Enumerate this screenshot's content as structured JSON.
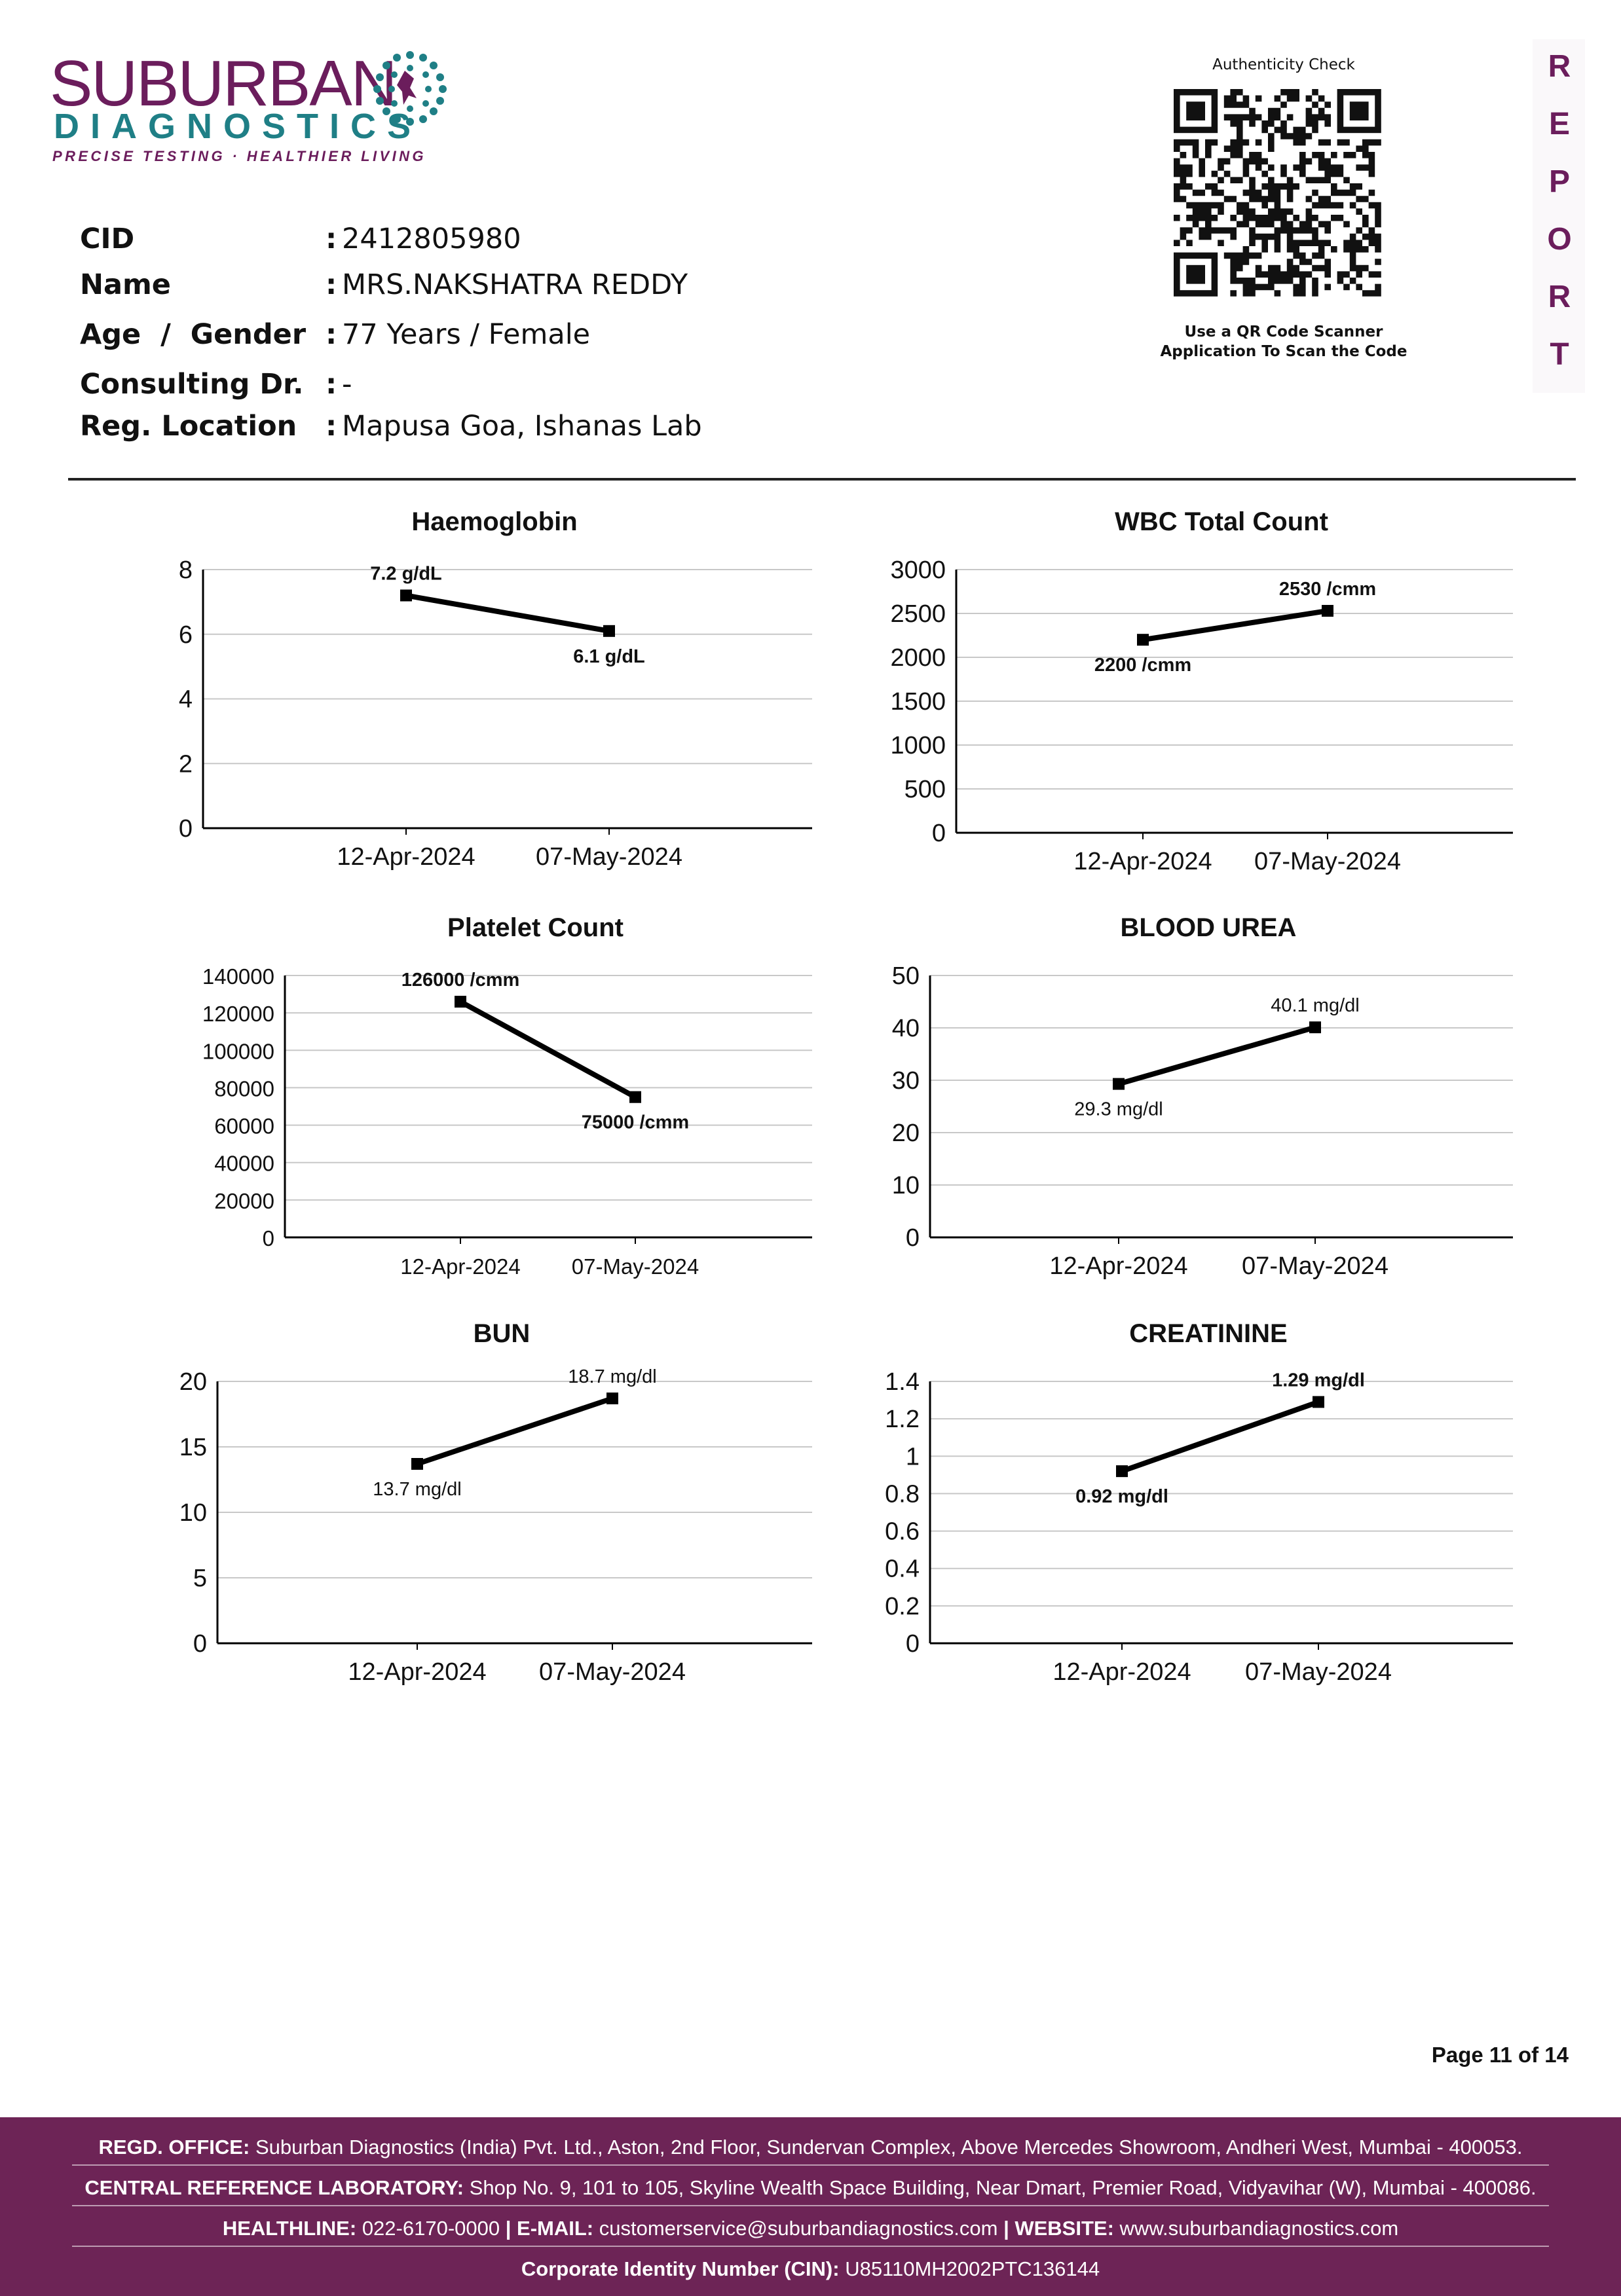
{
  "logo": {
    "brand": "SUBURBAN",
    "sub": "DIAGNOSTICS",
    "tagline": "PRECISE TESTING · HEALTHIER LIVING"
  },
  "patient": [
    {
      "label": "CID",
      "value": "2412805980"
    },
    {
      "label": "Name",
      "value": "MRS.NAKSHATRA REDDY"
    },
    {
      "label": "Age  /  Gender",
      "value": "77 Years / Female"
    },
    {
      "label": "Consulting Dr.",
      "value": "-"
    },
    {
      "label": "Reg. Location",
      "value": "Mapusa Goa, Ishanas Lab"
    }
  ],
  "qr": {
    "title": "Authenticity Check",
    "caption_line1": "Use a QR Code Scanner",
    "caption_line2": "Application To Scan the Code"
  },
  "side_label": [
    "R",
    "E",
    "P",
    "O",
    "R",
    "T"
  ],
  "page_number": "Page 11 of 14",
  "colors": {
    "brand_purple": "#6b1d5c",
    "brand_teal": "#1f7f86",
    "footer_bg": "#6d2456"
  },
  "chart_data": [
    {
      "type": "line",
      "title": "Haemoglobin",
      "categories": [
        "12-Apr-2024",
        "07-May-2024"
      ],
      "values": [
        7.2,
        6.1
      ],
      "data_labels": [
        "7.2 g/dL",
        "6.1 g/dL"
      ],
      "unit": "g/dL",
      "ylim": [
        0,
        8
      ],
      "yticks": [
        "8",
        "6",
        "4",
        "2",
        "0"
      ],
      "grid": true
    },
    {
      "type": "line",
      "title": "WBC Total Count",
      "categories": [
        "12-Apr-2024",
        "07-May-2024"
      ],
      "values": [
        2200,
        2530
      ],
      "data_labels": [
        "2200 /cmm",
        "2530 /cmm"
      ],
      "unit": "/cmm",
      "ylim": [
        0,
        3000
      ],
      "yticks": [
        "3000",
        "2500",
        "2000",
        "1500",
        "1000",
        "500",
        "0"
      ],
      "grid": true
    },
    {
      "type": "line",
      "title": "Platelet Count",
      "categories": [
        "12-Apr-2024",
        "07-May-2024"
      ],
      "values": [
        126000,
        75000
      ],
      "data_labels": [
        "126000 /cmm",
        "75000 /cmm"
      ],
      "unit": "/cmm",
      "ylim": [
        0,
        140000
      ],
      "yticks": [
        "140000",
        "120000",
        "100000",
        "80000",
        "60000",
        "40000",
        "20000",
        "0"
      ],
      "grid": true
    },
    {
      "type": "line",
      "title": "BLOOD UREA",
      "categories": [
        "12-Apr-2024",
        "07-May-2024"
      ],
      "values": [
        29.3,
        40.1
      ],
      "data_labels": [
        "29.3 mg/dl",
        "40.1 mg/dl"
      ],
      "unit": "mg/dl",
      "ylim": [
        0,
        50
      ],
      "yticks": [
        "50",
        "40",
        "30",
        "20",
        "10",
        "0"
      ],
      "grid": true
    },
    {
      "type": "line",
      "title": "BUN",
      "categories": [
        "12-Apr-2024",
        "07-May-2024"
      ],
      "values": [
        13.7,
        18.7
      ],
      "data_labels": [
        "13.7 mg/dl",
        "18.7 mg/dl"
      ],
      "unit": "mg/dl",
      "ylim": [
        0,
        20
      ],
      "yticks": [
        "20",
        "15",
        "10",
        "5",
        "0"
      ],
      "grid": true
    },
    {
      "type": "line",
      "title": "CREATININE",
      "categories": [
        "12-Apr-2024",
        "07-May-2024"
      ],
      "values": [
        0.92,
        1.29
      ],
      "data_labels": [
        "0.92 mg/dl",
        "1.29 mg/dl"
      ],
      "unit": "mg/dl",
      "ylim": [
        0,
        1.4
      ],
      "yticks": [
        "1.4",
        "1.2",
        "1",
        "0.8",
        "0.6",
        "0.4",
        "0.2",
        "0"
      ],
      "grid": true
    }
  ],
  "footer": {
    "office_label": "REGD. OFFICE:",
    "office_text": "Suburban Diagnostics (India) Pvt. Ltd., Aston, 2nd Floor, Sundervan Complex, Above Mercedes Showroom, Andheri West, Mumbai - 400053.",
    "lab_label": "CENTRAL REFERENCE LABORATORY:",
    "lab_text": "Shop No. 9, 101 to 105, Skyline Wealth Space Building, Near Dmart, Premier Road, Vidyavihar (W), Mumbai - 400086.",
    "helpline_label": "HEALTHLINE:",
    "helpline": "022-6170-0000",
    "email_label": "E-MAIL:",
    "email": "customerservice@suburbandiagnostics.com",
    "website_label": "WEBSITE:",
    "website": "www.suburbandiagnostics.com",
    "cin_label": "Corporate Identity Number (CIN):",
    "cin": "U85110MH2002PTC136144"
  }
}
